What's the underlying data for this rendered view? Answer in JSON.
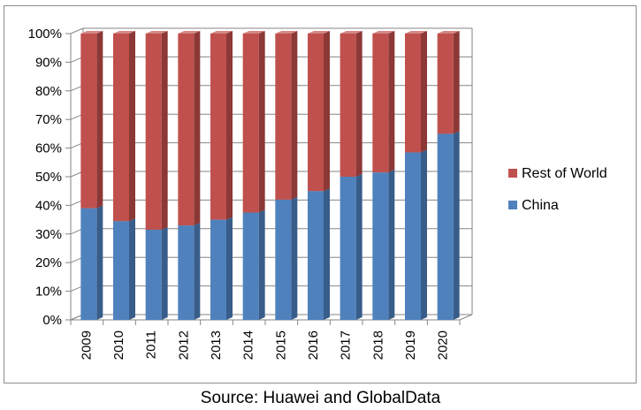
{
  "caption": "Source: Huawei and GlobalData",
  "colors": {
    "rest_front": "#C0504D",
    "rest_side": "#8C3836",
    "rest_top": "#D48785",
    "china_front": "#4F81BD",
    "china_side": "#385D8A",
    "china_top": "#7FA3CF",
    "grid": "#868686"
  },
  "chart_data": {
    "type": "bar",
    "stacked": true,
    "percent": true,
    "categories": [
      "2009",
      "2010",
      "2011",
      "2012",
      "2013",
      "2014",
      "2015",
      "2016",
      "2017",
      "2018",
      "2019",
      "2020"
    ],
    "series": [
      {
        "name": "China",
        "values": [
          39,
          34.5,
          31.5,
          33,
          35,
          37.5,
          42,
          45,
          50,
          51.5,
          58.5,
          65
        ]
      },
      {
        "name": "Rest of World",
        "values": [
          61,
          65.5,
          68.5,
          67,
          65,
          62.5,
          58,
          55,
          50,
          48.5,
          41.5,
          35
        ]
      }
    ],
    "ylim": [
      0,
      100
    ],
    "yticks": [
      "0%",
      "10%",
      "20%",
      "30%",
      "40%",
      "50%",
      "60%",
      "70%",
      "80%",
      "90%",
      "100%"
    ],
    "grid": true,
    "legend": {
      "position": "right",
      "entries": [
        {
          "label": "Rest of World",
          "series": "Rest of World"
        },
        {
          "label": "China",
          "series": "China"
        }
      ]
    }
  }
}
